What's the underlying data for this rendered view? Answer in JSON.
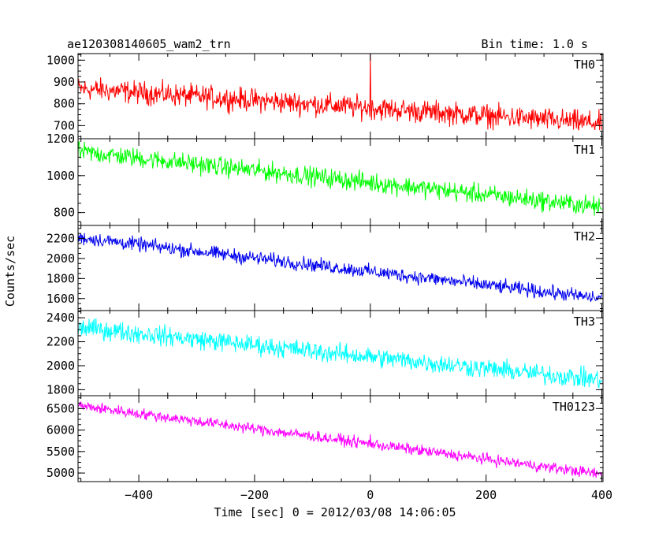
{
  "header": {
    "left_title": "ae120308140605_wam2_trn",
    "right_title": "Bin time: 1.0 s"
  },
  "chart_data": {
    "type": "line",
    "xlabel": "Time [sec] 0 = 2012/03/08 14:06:05",
    "ylabel": "Counts/sec",
    "xlim": [
      -505,
      402
    ],
    "xticks": [
      -400,
      -200,
      0,
      200,
      400
    ],
    "xtick_labels": [
      "−400",
      "−200",
      "0",
      "200",
      "400"
    ],
    "panels": [
      {
        "name": "TH0",
        "color": "#ff0000",
        "ylim": [
          640,
          1030
        ],
        "yticks": [
          700,
          800,
          900,
          1000
        ],
        "ytick_labels": [
          "700",
          "800",
          "900",
          "1000"
        ],
        "trend_x": [
          -505,
          400
        ],
        "trend_y": [
          870,
          710
        ],
        "noise": 45,
        "spikes": [
          {
            "x": 0,
            "y": 1030
          }
        ]
      },
      {
        "name": "TH1",
        "color": "#00ff00",
        "ylim": [
          730,
          1200
        ],
        "yticks": [
          800,
          1000,
          1200
        ],
        "ytick_labels": [
          "800",
          "1000",
          "1200"
        ],
        "trend_x": [
          -505,
          400
        ],
        "trend_y": [
          1130,
          830
        ],
        "noise": 45,
        "spikes": []
      },
      {
        "name": "TH2",
        "color": "#0000ee",
        "ylim": [
          1480,
          2330
        ],
        "yticks": [
          1600,
          1800,
          2000,
          2200
        ],
        "ytick_labels": [
          "1600",
          "1800",
          "2000",
          "2200"
        ],
        "trend_x": [
          -505,
          400
        ],
        "trend_y": [
          2210,
          1600
        ],
        "noise": 60,
        "spikes": []
      },
      {
        "name": "TH3",
        "color": "#00ffff",
        "ylim": [
          1750,
          2460
        ],
        "yticks": [
          1800,
          2000,
          2200,
          2400
        ],
        "ytick_labels": [
          "1800",
          "2000",
          "2200",
          "2400"
        ],
        "trend_x": [
          -505,
          400
        ],
        "trend_y": [
          2320,
          1880
        ],
        "noise": 70,
        "spikes": []
      },
      {
        "name": "TH0123",
        "color": "#ff00ff",
        "ylim": [
          4800,
          6800
        ],
        "yticks": [
          5000,
          5500,
          6000,
          6500
        ],
        "ytick_labels": [
          "5000",
          "5500",
          "6000",
          "6500"
        ],
        "trend_x": [
          -505,
          400
        ],
        "trend_y": [
          6570,
          4970
        ],
        "noise": 110,
        "spikes": [
          {
            "x": 0,
            "y": 5900
          }
        ]
      }
    ]
  }
}
